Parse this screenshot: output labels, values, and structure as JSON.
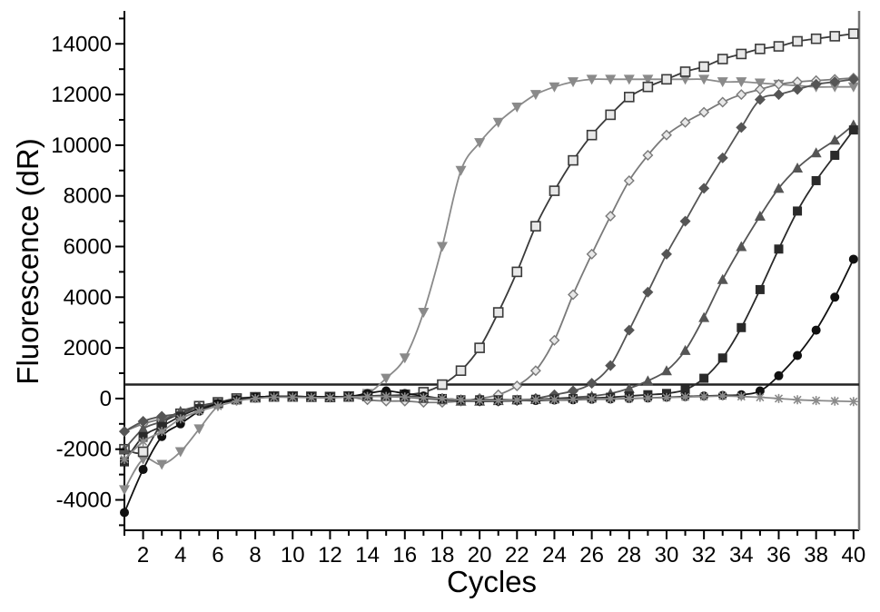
{
  "chart_data": {
    "type": "line",
    "title": "",
    "xlabel": "Cycles",
    "ylabel": "Fluorescence (dR)",
    "xlim": [
      1,
      40.3
    ],
    "ylim": [
      -5200,
      15300
    ],
    "x_ticks": [
      2,
      4,
      6,
      8,
      10,
      12,
      14,
      16,
      18,
      20,
      22,
      24,
      26,
      28,
      30,
      32,
      34,
      36,
      38,
      40
    ],
    "y_ticks": [
      -4000,
      -2000,
      0,
      2000,
      4000,
      6000,
      8000,
      10000,
      12000,
      14000
    ],
    "threshold": 550,
    "grid": false,
    "legend": "none",
    "x": [
      1,
      2,
      3,
      4,
      5,
      6,
      7,
      8,
      9,
      10,
      11,
      12,
      13,
      14,
      15,
      16,
      17,
      18,
      19,
      20,
      21,
      22,
      23,
      24,
      25,
      26,
      27,
      28,
      29,
      30,
      31,
      32,
      33,
      34,
      35,
      36,
      37,
      38,
      39,
      40
    ],
    "series": [
      {
        "marker": "triangle-down",
        "color": "#8a8a8a",
        "values": [
          -3600,
          -2400,
          -2600,
          -2100,
          -1200,
          -300,
          0,
          50,
          80,
          80,
          60,
          50,
          100,
          200,
          800,
          1600,
          3400,
          6000,
          9000,
          10100,
          10900,
          11500,
          12000,
          12300,
          12500,
          12600,
          12600,
          12600,
          12600,
          12600,
          12600,
          12600,
          12500,
          12500,
          12450,
          12400,
          12350,
          12300,
          12300,
          12300
        ]
      },
      {
        "marker": "square-open",
        "color": "#3a3a3a",
        "values": [
          -2000,
          -2100,
          -1000,
          -600,
          -300,
          -150,
          0,
          50,
          80,
          80,
          70,
          60,
          80,
          100,
          120,
          150,
          250,
          550,
          1100,
          2000,
          3400,
          5000,
          6800,
          8200,
          9400,
          10400,
          11200,
          11900,
          12300,
          12600,
          12900,
          13100,
          13400,
          13600,
          13800,
          13900,
          14100,
          14200,
          14300,
          14400
        ]
      },
      {
        "marker": "diamond-open",
        "color": "#7a7a7a",
        "values": [
          -1300,
          -1000,
          -800,
          -600,
          -400,
          -200,
          -50,
          50,
          80,
          80,
          70,
          60,
          60,
          -50,
          -100,
          -100,
          -150,
          -150,
          -100,
          0,
          150,
          500,
          1100,
          2300,
          4100,
          5700,
          7200,
          8600,
          9600,
          10400,
          10900,
          11300,
          11700,
          12000,
          12200,
          12400,
          12500,
          12550,
          12600,
          12650
        ]
      },
      {
        "marker": "diamond",
        "color": "#555555",
        "values": [
          -1300,
          -900,
          -700,
          -600,
          -400,
          -200,
          -50,
          50,
          80,
          80,
          70,
          60,
          80,
          100,
          120,
          100,
          50,
          0,
          -50,
          -100,
          -100,
          -80,
          0,
          150,
          300,
          600,
          1300,
          2700,
          4200,
          5700,
          7000,
          8300,
          9500,
          10700,
          11800,
          12000,
          12200,
          12400,
          12500,
          12600
        ]
      },
      {
        "marker": "triangle-up",
        "color": "#555555",
        "values": [
          -2000,
          -1200,
          -900,
          -500,
          -300,
          -200,
          -50,
          50,
          80,
          80,
          70,
          60,
          80,
          100,
          80,
          50,
          0,
          -50,
          -100,
          -100,
          -80,
          -50,
          -30,
          0,
          50,
          100,
          200,
          400,
          700,
          1100,
          1900,
          3200,
          4700,
          6000,
          7200,
          8300,
          9100,
          9700,
          10200,
          10800
        ]
      },
      {
        "marker": "square",
        "color": "#2a2a2a",
        "values": [
          -2500,
          -1500,
          -1100,
          -700,
          -400,
          -200,
          -50,
          50,
          80,
          80,
          70,
          60,
          80,
          100,
          100,
          80,
          50,
          0,
          -50,
          -50,
          -50,
          -50,
          -30,
          -20,
          0,
          20,
          50,
          100,
          150,
          200,
          350,
          800,
          1600,
          2800,
          4300,
          5900,
          7400,
          8600,
          9600,
          10600
        ]
      },
      {
        "marker": "circle",
        "color": "#111111",
        "values": [
          -4500,
          -2800,
          -1500,
          -1000,
          -500,
          -200,
          -50,
          50,
          80,
          80,
          70,
          60,
          80,
          200,
          300,
          200,
          100,
          0,
          -50,
          -100,
          -100,
          -80,
          -80,
          -60,
          -50,
          -30,
          -20,
          0,
          20,
          50,
          80,
          100,
          120,
          150,
          300,
          900,
          1700,
          2700,
          4000,
          5500
        ]
      },
      {
        "marker": "asterisk",
        "color": "#8a8a8a",
        "values": [
          -2400,
          -1700,
          -1300,
          -800,
          -500,
          -300,
          -100,
          0,
          50,
          50,
          40,
          30,
          60,
          80,
          80,
          60,
          30,
          0,
          -50,
          -80,
          -80,
          -60,
          -50,
          -50,
          -30,
          -20,
          -10,
          0,
          20,
          40,
          60,
          80,
          100,
          80,
          50,
          0,
          -50,
          -80,
          -100,
          -120
        ]
      }
    ]
  }
}
